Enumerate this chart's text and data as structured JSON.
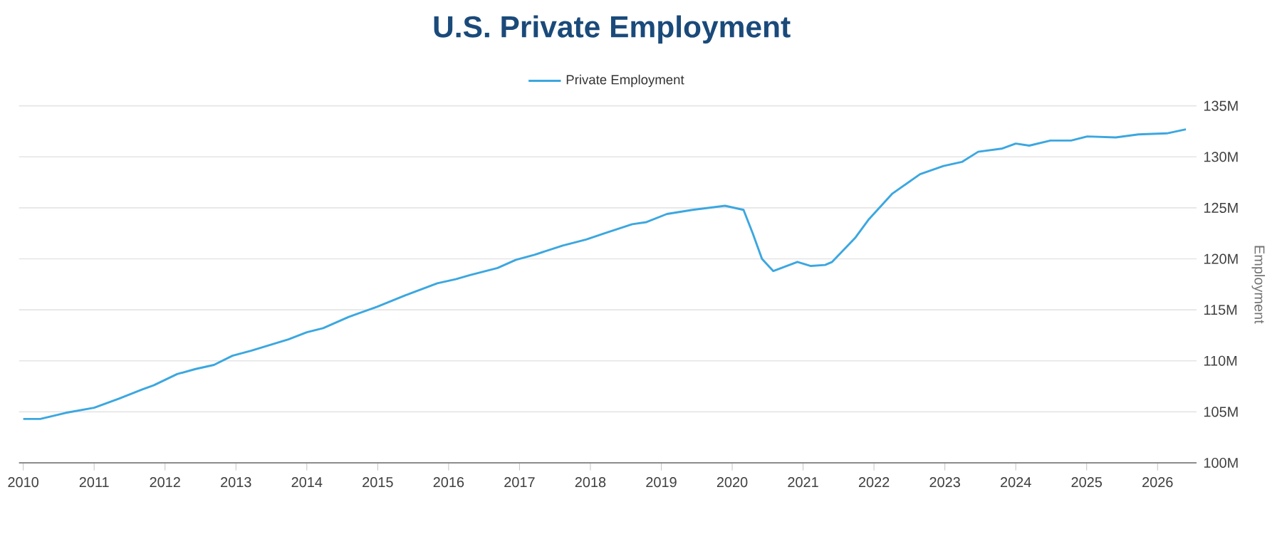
{
  "chart_data": {
    "type": "line",
    "title": "U.S. Private Employment",
    "ylabel": "Employment",
    "x": [
      2010.0,
      2010.24,
      2010.6,
      2011.0,
      2011.35,
      2011.68,
      2011.84,
      2012.17,
      2012.43,
      2012.69,
      2012.95,
      2013.22,
      2013.74,
      2014.0,
      2014.23,
      2014.59,
      2014.99,
      2015.38,
      2015.84,
      2016.1,
      2016.3,
      2016.69,
      2016.95,
      2017.21,
      2017.61,
      2017.94,
      2018.2,
      2018.59,
      2018.79,
      2019.08,
      2019.44,
      2019.9,
      2020.16,
      2020.29,
      2020.42,
      2020.58,
      2020.92,
      2021.11,
      2021.31,
      2021.41,
      2021.74,
      2021.93,
      2022.26,
      2022.65,
      2022.98,
      2023.24,
      2023.47,
      2023.8,
      2024.0,
      2024.19,
      2024.49,
      2024.78,
      2025.01,
      2025.41,
      2025.73,
      2026.13,
      2026.4
    ],
    "series": [
      {
        "name": "Private Employment",
        "color": "#3ba7e0",
        "values": [
          104.3,
          104.3,
          104.9,
          105.4,
          106.3,
          107.2,
          107.6,
          108.7,
          109.2,
          109.6,
          110.5,
          111.0,
          112.1,
          112.8,
          113.2,
          114.3,
          115.3,
          116.4,
          117.6,
          118.0,
          118.4,
          119.1,
          119.9,
          120.4,
          121.3,
          121.9,
          122.5,
          123.4,
          123.6,
          124.4,
          124.8,
          125.2,
          124.8,
          122.5,
          120.0,
          118.8,
          119.7,
          119.3,
          119.4,
          119.7,
          122.1,
          123.9,
          126.4,
          128.3,
          129.1,
          129.5,
          130.5,
          130.8,
          131.3,
          131.1,
          131.6,
          131.6,
          132.0,
          131.9,
          132.2,
          132.3,
          132.7
        ]
      }
    ],
    "xlim": [
      2009.94,
      2026.55
    ],
    "xticks": [
      2010,
      2011,
      2012,
      2013,
      2014,
      2015,
      2016,
      2017,
      2018,
      2019,
      2020,
      2021,
      2022,
      2023,
      2024,
      2025,
      2026
    ],
    "ylim": [
      100,
      135
    ],
    "yticks": [
      {
        "value": 100,
        "label": "100M"
      },
      {
        "value": 105,
        "label": "105M"
      },
      {
        "value": 110,
        "label": "110M"
      },
      {
        "value": 115,
        "label": "115M"
      },
      {
        "value": 120,
        "label": "120M"
      },
      {
        "value": 125,
        "label": "125M"
      },
      {
        "value": 130,
        "label": "130M"
      },
      {
        "value": 135,
        "label": "135M"
      }
    ],
    "grid": "y",
    "legend": "top"
  }
}
